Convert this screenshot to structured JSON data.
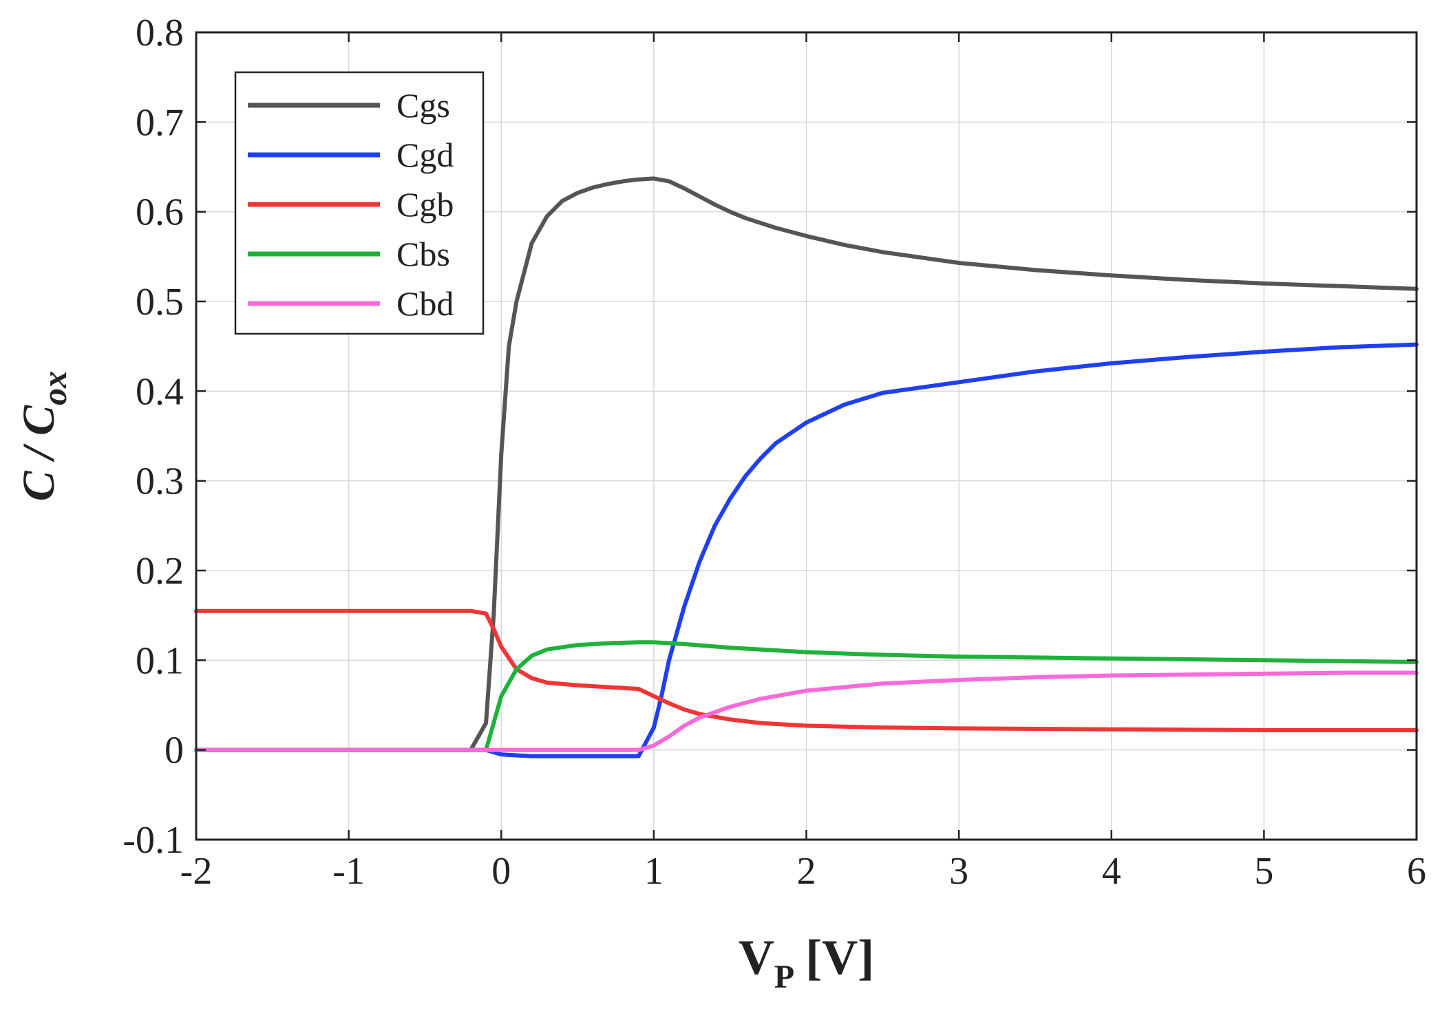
{
  "chart_data": {
    "type": "line",
    "title": "",
    "xlabel": {
      "main": "V",
      "sub": "P",
      "unit": "[V]"
    },
    "ylabel": {
      "main": "C / C",
      "sub": "ox"
    },
    "xlim": [
      -2,
      6
    ],
    "ylim": [
      -0.1,
      0.8
    ],
    "xticks": [
      -2,
      -1,
      0,
      1,
      2,
      3,
      4,
      5,
      6
    ],
    "xtick_labels": [
      "-2",
      "-1",
      "0",
      "1",
      "2",
      "3",
      "4",
      "5",
      "6"
    ],
    "yticks": [
      -0.1,
      0,
      0.1,
      0.2,
      0.3,
      0.4,
      0.5,
      0.6,
      0.7,
      0.8
    ],
    "ytick_labels": [
      "-0.1",
      "0",
      "0.1",
      "0.2",
      "0.3",
      "0.4",
      "0.5",
      "0.6",
      "0.7",
      "0.8"
    ],
    "grid": true,
    "legend_position": "top-left",
    "series": [
      {
        "name": "Cgs",
        "color": "#555555",
        "x": [
          -2,
          -0.2,
          -0.1,
          -0.05,
          0,
          0.05,
          0.1,
          0.2,
          0.3,
          0.4,
          0.5,
          0.6,
          0.7,
          0.8,
          0.9,
          1.0,
          1.1,
          1.2,
          1.3,
          1.4,
          1.5,
          1.6,
          1.8,
          2.0,
          2.25,
          2.5,
          3.0,
          3.5,
          4.0,
          4.5,
          5.0,
          5.5,
          6.0
        ],
        "y": [
          0,
          0,
          0.03,
          0.15,
          0.33,
          0.45,
          0.5,
          0.565,
          0.595,
          0.612,
          0.621,
          0.627,
          0.631,
          0.634,
          0.636,
          0.637,
          0.634,
          0.626,
          0.617,
          0.608,
          0.6,
          0.593,
          0.582,
          0.573,
          0.563,
          0.555,
          0.543,
          0.535,
          0.529,
          0.524,
          0.52,
          0.517,
          0.514
        ]
      },
      {
        "name": "Cgd",
        "color": "#1f3ff2",
        "x": [
          -2,
          -0.1,
          0,
          0.2,
          0.5,
          0.8,
          0.9,
          1.0,
          1.05,
          1.1,
          1.2,
          1.3,
          1.4,
          1.5,
          1.6,
          1.7,
          1.8,
          2.0,
          2.25,
          2.5,
          3.0,
          3.5,
          4.0,
          4.5,
          5.0,
          5.5,
          6.0
        ],
        "y": [
          0,
          0,
          -0.005,
          -0.007,
          -0.007,
          -0.007,
          -0.007,
          0.025,
          0.06,
          0.1,
          0.16,
          0.21,
          0.25,
          0.28,
          0.305,
          0.325,
          0.342,
          0.365,
          0.385,
          0.398,
          0.41,
          0.422,
          0.431,
          0.438,
          0.444,
          0.449,
          0.452
        ]
      },
      {
        "name": "Cgb",
        "color": "#f03535",
        "x": [
          -2,
          -0.2,
          -0.1,
          -0.05,
          0,
          0.1,
          0.2,
          0.3,
          0.5,
          0.7,
          0.9,
          1.0,
          1.1,
          1.2,
          1.3,
          1.5,
          1.7,
          2.0,
          2.5,
          3.0,
          4.0,
          5.0,
          6.0
        ],
        "y": [
          0.155,
          0.155,
          0.152,
          0.135,
          0.115,
          0.09,
          0.08,
          0.075,
          0.072,
          0.07,
          0.068,
          0.06,
          0.052,
          0.045,
          0.04,
          0.034,
          0.03,
          0.027,
          0.025,
          0.024,
          0.023,
          0.022,
          0.022
        ]
      },
      {
        "name": "Cbs",
        "color": "#1fb23a",
        "x": [
          -2,
          -0.1,
          0,
          0.1,
          0.2,
          0.3,
          0.5,
          0.7,
          0.9,
          1.0,
          1.2,
          1.5,
          2.0,
          2.5,
          3.0,
          3.5,
          4.0,
          4.5,
          5.0,
          5.5,
          6.0
        ],
        "y": [
          0,
          0,
          0.06,
          0.09,
          0.105,
          0.112,
          0.117,
          0.119,
          0.12,
          0.12,
          0.118,
          0.114,
          0.109,
          0.106,
          0.104,
          0.103,
          0.102,
          0.101,
          0.1,
          0.099,
          0.098
        ]
      },
      {
        "name": "Cbd",
        "color": "#f76ad9",
        "x": [
          -2,
          0,
          0.5,
          0.9,
          1.0,
          1.1,
          1.2,
          1.3,
          1.5,
          1.7,
          2.0,
          2.5,
          3.0,
          3.5,
          4.0,
          4.5,
          5.0,
          5.5,
          6.0
        ],
        "y": [
          0,
          0,
          0,
          0,
          0.005,
          0.015,
          0.027,
          0.036,
          0.048,
          0.057,
          0.066,
          0.074,
          0.078,
          0.081,
          0.083,
          0.084,
          0.085,
          0.086,
          0.086
        ]
      }
    ]
  }
}
